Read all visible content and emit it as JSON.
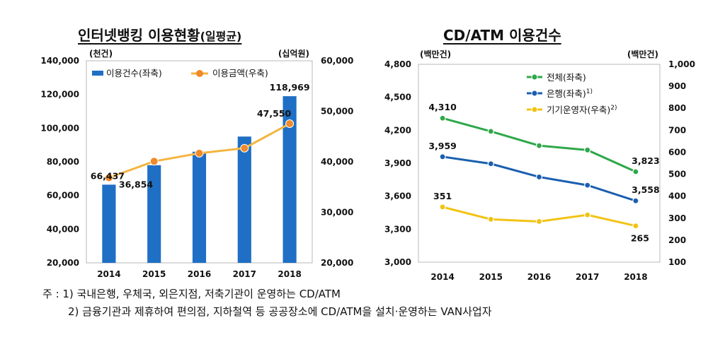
{
  "chart_data": [
    {
      "type": "bar",
      "title": "인터넷뱅킹 이용현황",
      "title_suffix": "(일평균)",
      "categories": [
        "2014",
        "2015",
        "2016",
        "2017",
        "2018"
      ],
      "y_unit_left": "(천건)",
      "y_unit_right": "(십억원)",
      "ylim_left": [
        20000,
        140000
      ],
      "ylim_right": [
        20000,
        60000
      ],
      "yticks_left": [
        "20,000",
        "40,000",
        "60,000",
        "80,000",
        "100,000",
        "120,000",
        "140,000"
      ],
      "yticks_right": [
        "20,000",
        "30,000",
        "40,000",
        "50,000",
        "60,000"
      ],
      "legend_position": "top-left",
      "series": [
        {
          "name": "이용건수(좌축)",
          "kind": "bar",
          "axis": "left",
          "color": "#1f6fc5",
          "values": [
            66437,
            78000,
            86000,
            95000,
            118969
          ]
        },
        {
          "name": "이용금액(우축)",
          "kind": "line",
          "axis": "right",
          "color": "#f4b53f",
          "marker_color": "#f08a2a",
          "values": [
            36854,
            40100,
            41700,
            42700,
            47550
          ]
        }
      ],
      "data_labels": [
        {
          "series": 0,
          "index": 0,
          "text": "66,437"
        },
        {
          "series": 1,
          "index": 0,
          "text": "36,854"
        },
        {
          "series": 1,
          "index": 4,
          "text": "47,550"
        },
        {
          "series": 0,
          "index": 4,
          "text": "118,969"
        }
      ]
    },
    {
      "type": "line",
      "title": "CD/ATM 이용건수",
      "categories": [
        "2014",
        "2015",
        "2016",
        "2017",
        "2018"
      ],
      "y_unit_left": "(백만건)",
      "y_unit_right": "(백만건)",
      "ylim_left": [
        3000,
        4800
      ],
      "ylim_right": [
        100,
        1000
      ],
      "yticks_left": [
        "3,000",
        "3,300",
        "3,600",
        "3,900",
        "4,200",
        "4,500",
        "4,800"
      ],
      "yticks_right": [
        "100",
        "200",
        "300",
        "400",
        "500",
        "600",
        "700",
        "800",
        "900",
        "1,000"
      ],
      "legend_position": "top-right",
      "series": [
        {
          "name": "전체(좌축)",
          "sup": "",
          "axis": "left",
          "color": "#2ea84a",
          "values": [
            4310,
            4190,
            4060,
            4020,
            3823
          ]
        },
        {
          "name": "은행(좌축)",
          "sup": "1)",
          "axis": "left",
          "color": "#1a5fb0",
          "values": [
            3959,
            3895,
            3775,
            3700,
            3558
          ]
        },
        {
          "name": "기기운영자(우축)",
          "sup": "2)",
          "axis": "right",
          "color": "#f2c314",
          "values": [
            351,
            295,
            285,
            315,
            265
          ]
        }
      ],
      "data_labels": [
        {
          "series": 0,
          "index": 0,
          "text": "4,310"
        },
        {
          "series": 0,
          "index": 4,
          "text": "3,823"
        },
        {
          "series": 1,
          "index": 0,
          "text": "3,959"
        },
        {
          "series": 1,
          "index": 4,
          "text": "3,558"
        },
        {
          "series": 2,
          "index": 0,
          "text": "351"
        },
        {
          "series": 2,
          "index": 4,
          "text": "265"
        }
      ]
    }
  ],
  "notes": {
    "note1": "주 : 1) 국내은행, 우체국, 외은지점, 저축기관이 운영하는 CD/ATM",
    "note2": "2) 금융기관과 제휴하여 편의점, 지하철역 등 공공장소에 CD/ATM을 설치·운영하는 VAN사업자"
  }
}
